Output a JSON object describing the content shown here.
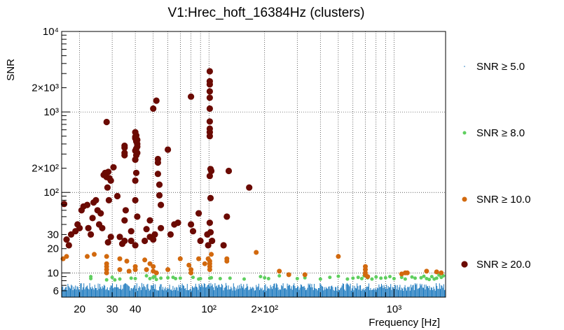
{
  "chart_data": {
    "type": "scatter",
    "title": "V1:Hrec_hoft_16384Hz (clusters)",
    "xlabel": "Frequency [Hz]",
    "ylabel": "SNR",
    "xscale": "log",
    "yscale": "log",
    "xlim": [
      16,
      1900
    ],
    "ylim": [
      5,
      10000
    ],
    "grid": true,
    "legend_placement": "right",
    "x_tick_labels": [
      {
        "value": 20,
        "label": "20"
      },
      {
        "value": 30,
        "label": "30"
      },
      {
        "value": 40,
        "label": "40"
      },
      {
        "value": 100,
        "label": "10²"
      },
      {
        "value": 200,
        "label": "2×10²"
      },
      {
        "value": 1000,
        "label": "10³"
      }
    ],
    "y_tick_labels": [
      {
        "value": 6,
        "label": "6"
      },
      {
        "value": 10,
        "label": "10"
      },
      {
        "value": 20,
        "label": "20"
      },
      {
        "value": 30,
        "label": "30"
      },
      {
        "value": 100,
        "label": "10²"
      },
      {
        "value": 200,
        "label": "2×10²"
      },
      {
        "value": 1000,
        "label": "10³"
      },
      {
        "value": 2000,
        "label": "2×10³"
      },
      {
        "value": 10000,
        "label": "10⁴"
      }
    ],
    "series": [
      {
        "name": "SNR ≥ 5.0",
        "color": "#1f7bbf",
        "marker": "tiny",
        "band": {
          "x_start": 16,
          "x_end": 1900,
          "y_min": 5,
          "y_max": 7.5
        }
      },
      {
        "name": "SNR ≥ 8.0",
        "color": "#5fcf5f",
        "marker": "small",
        "points": [
          [
            23,
            8.5
          ],
          [
            23,
            9
          ],
          [
            28,
            8.2
          ],
          [
            30,
            8.8
          ],
          [
            31,
            8.2
          ],
          [
            33,
            8.4
          ],
          [
            38,
            8.6
          ],
          [
            40,
            8.5
          ],
          [
            46,
            9.2
          ],
          [
            48,
            8.5
          ],
          [
            50,
            8.8
          ],
          [
            51,
            9
          ],
          [
            52,
            8.3
          ],
          [
            55,
            8.6
          ],
          [
            60,
            8.7
          ],
          [
            64,
            8.8
          ],
          [
            66,
            8.5
          ],
          [
            70,
            8.6
          ],
          [
            82,
            8.8
          ],
          [
            88,
            8.4
          ],
          [
            90,
            8.5
          ],
          [
            101,
            8.6
          ],
          [
            103,
            8.7
          ],
          [
            115,
            8.5
          ],
          [
            130,
            8.6
          ],
          [
            155,
            8.4
          ],
          [
            190,
            9
          ],
          [
            200,
            8.7
          ],
          [
            210,
            8.5
          ],
          [
            240,
            9.2
          ],
          [
            300,
            8.5
          ],
          [
            330,
            8.7
          ],
          [
            400,
            8.4
          ],
          [
            450,
            8.8
          ],
          [
            500,
            9.1
          ],
          [
            560,
            8.4
          ],
          [
            600,
            8.6
          ],
          [
            640,
            8.8
          ],
          [
            670,
            8.5
          ],
          [
            690,
            9.2
          ],
          [
            720,
            8.7
          ],
          [
            760,
            8.4
          ],
          [
            800,
            8.9
          ],
          [
            850,
            8.6
          ],
          [
            900,
            8.7
          ],
          [
            950,
            9
          ],
          [
            1000,
            8.5
          ],
          [
            1100,
            8.8
          ],
          [
            1150,
            8.4
          ],
          [
            1250,
            8.9
          ],
          [
            1300,
            8.6
          ],
          [
            1400,
            8.7
          ],
          [
            1500,
            8.5
          ],
          [
            1600,
            9
          ],
          [
            1700,
            8.6
          ],
          [
            1800,
            8.8
          ],
          [
            1850,
            9.2
          ],
          [
            1650,
            8.4
          ],
          [
            1750,
            9.4
          ],
          [
            1450,
            9.1
          ],
          [
            1550,
            8.3
          ]
        ]
      },
      {
        "name": "SNR ≥ 10.0",
        "color": "#d2690e",
        "marker": "medium",
        "points": [
          [
            16.3,
            15
          ],
          [
            17,
            16
          ],
          [
            22,
            16
          ],
          [
            24,
            17
          ],
          [
            28,
            16
          ],
          [
            28,
            13
          ],
          [
            28,
            12
          ],
          [
            28,
            11
          ],
          [
            28,
            10
          ],
          [
            33,
            15
          ],
          [
            33,
            11
          ],
          [
            36,
            14
          ],
          [
            37,
            10.5
          ],
          [
            40,
            12
          ],
          [
            40,
            11
          ],
          [
            45,
            14.5
          ],
          [
            46,
            11
          ],
          [
            48,
            13
          ],
          [
            50,
            12
          ],
          [
            50,
            10.5
          ],
          [
            52,
            10
          ],
          [
            60,
            11
          ],
          [
            70,
            15
          ],
          [
            78,
            12.5
          ],
          [
            80,
            11
          ],
          [
            80,
            10
          ],
          [
            88,
            15
          ],
          [
            95,
            13
          ],
          [
            99,
            15
          ],
          [
            101,
            11
          ],
          [
            101,
            12
          ],
          [
            101,
            14
          ],
          [
            101,
            13
          ],
          [
            103,
            17
          ],
          [
            125,
            15
          ],
          [
            125,
            14
          ],
          [
            180,
            18
          ],
          [
            240,
            10.5
          ],
          [
            270,
            9.5
          ],
          [
            330,
            9.5
          ],
          [
            500,
            16
          ],
          [
            700,
            12
          ],
          [
            700,
            11
          ],
          [
            700,
            10
          ],
          [
            700,
            9.5
          ],
          [
            720,
            9
          ],
          [
            1100,
            9.7
          ],
          [
            1150,
            10
          ],
          [
            1180,
            10
          ],
          [
            1500,
            10.5
          ],
          [
            1700,
            10.3
          ],
          [
            1800,
            10
          ]
        ]
      },
      {
        "name": "SNR ≥ 20.0",
        "color": "#6b0a02",
        "marker": "large",
        "points": [
          [
            16.5,
            72
          ],
          [
            17,
            26
          ],
          [
            17.5,
            22
          ],
          [
            18,
            30
          ],
          [
            19,
            33
          ],
          [
            19.5,
            40
          ],
          [
            20,
            36
          ],
          [
            20.5,
            60
          ],
          [
            21,
            67
          ],
          [
            22,
            70
          ],
          [
            22.3,
            36
          ],
          [
            23,
            30
          ],
          [
            23.5,
            48
          ],
          [
            23.8,
            75
          ],
          [
            24.5,
            80
          ],
          [
            25,
            60
          ],
          [
            25.5,
            40
          ],
          [
            26,
            55
          ],
          [
            26.5,
            36
          ],
          [
            27,
            165
          ],
          [
            27.5,
            175
          ],
          [
            28,
            155
          ],
          [
            28,
            750
          ],
          [
            28.3,
            115
          ],
          [
            28.6,
            180
          ],
          [
            29,
            150
          ],
          [
            29.5,
            140
          ],
          [
            28.8,
            80
          ],
          [
            29.5,
            28
          ],
          [
            28.5,
            24
          ],
          [
            30.5,
            205
          ],
          [
            32,
            90
          ],
          [
            33,
            28
          ],
          [
            34,
            23
          ],
          [
            35,
            290
          ],
          [
            35,
            310
          ],
          [
            35,
            360
          ],
          [
            35,
            380
          ],
          [
            35,
            25
          ],
          [
            35,
            45
          ],
          [
            35.5,
            60
          ],
          [
            38,
            25
          ],
          [
            38,
            33
          ],
          [
            40,
            560
          ],
          [
            40.5,
            510
          ],
          [
            40,
            490
          ],
          [
            40,
            470
          ],
          [
            41,
            450
          ],
          [
            40.5,
            430
          ],
          [
            41,
            400
          ],
          [
            41,
            370
          ],
          [
            40.5,
            350
          ],
          [
            40,
            330
          ],
          [
            41,
            310
          ],
          [
            40.5,
            290
          ],
          [
            40,
            255
          ],
          [
            40,
            255
          ],
          [
            40.5,
            175
          ],
          [
            40,
            140
          ],
          [
            40,
            80
          ],
          [
            41,
            50
          ],
          [
            40,
            22
          ],
          [
            45,
            25
          ],
          [
            46,
            35
          ],
          [
            48,
            45
          ],
          [
            48,
            28
          ],
          [
            50,
            1100
          ],
          [
            50,
            26
          ],
          [
            51,
            30
          ],
          [
            52,
            1380
          ],
          [
            53,
            260
          ],
          [
            53,
            235
          ],
          [
            53,
            170
          ],
          [
            54,
            125
          ],
          [
            54,
            92
          ],
          [
            55,
            70
          ],
          [
            55,
            36
          ],
          [
            60,
            340
          ],
          [
            62,
            30
          ],
          [
            65,
            40
          ],
          [
            68,
            42
          ],
          [
            80,
            1550
          ],
          [
            80,
            40
          ],
          [
            82,
            33
          ],
          [
            88,
            55
          ],
          [
            90,
            25
          ],
          [
            98,
            30
          ],
          [
            99,
            22
          ],
          [
            101,
            3200
          ],
          [
            101,
            2400
          ],
          [
            101,
            2200
          ],
          [
            101,
            1800
          ],
          [
            101,
            1500
          ],
          [
            101,
            1100
          ],
          [
            101,
            760
          ],
          [
            101,
            620
          ],
          [
            101,
            560
          ],
          [
            101,
            500
          ],
          [
            101,
            160
          ],
          [
            102,
            195
          ],
          [
            103,
            185
          ],
          [
            102,
            85
          ],
          [
            102,
            32
          ],
          [
            101,
            42
          ],
          [
            104,
            25
          ],
          [
            120,
            22
          ],
          [
            125,
            50
          ],
          [
            128,
            185
          ],
          [
            165,
            115
          ]
        ]
      }
    ]
  }
}
